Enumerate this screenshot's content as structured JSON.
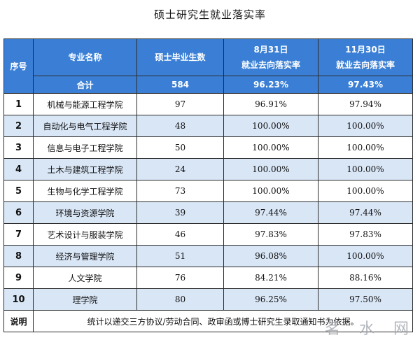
{
  "title": "硕士研究生就业落实率",
  "headers": {
    "index": "序号",
    "major": "专业名称",
    "graduates": "硕士毕业生数",
    "aug_line1": "8月31日",
    "aug_line2": "就业去向落实率",
    "nov_line1": "11月30日",
    "nov_line2": "就业去向落实率"
  },
  "total": {
    "label": "合计",
    "graduates": "584",
    "aug": "96.23%",
    "nov": "97.43%"
  },
  "rows": [
    {
      "index": "1",
      "name": "机械与能源工程学院",
      "graduates": "97",
      "aug": "96.91%",
      "nov": "97.94%"
    },
    {
      "index": "2",
      "name": "自动化与电气工程学院",
      "graduates": "48",
      "aug": "100.00%",
      "nov": "100.00%"
    },
    {
      "index": "3",
      "name": "信息与电子工程学院",
      "graduates": "50",
      "aug": "100.00%",
      "nov": "100.00%"
    },
    {
      "index": "4",
      "name": "土木与建筑工程学院",
      "graduates": "24",
      "aug": "100.00%",
      "nov": "100.00%"
    },
    {
      "index": "5",
      "name": "生物与化学工程学院",
      "graduates": "73",
      "aug": "100.00%",
      "nov": "100.00%"
    },
    {
      "index": "6",
      "name": "环境与资源学院",
      "graduates": "39",
      "aug": "97.44%",
      "nov": "97.44%"
    },
    {
      "index": "7",
      "name": "艺术设计与服装学院",
      "graduates": "46",
      "aug": "97.83%",
      "nov": "97.83%"
    },
    {
      "index": "8",
      "name": "经济与管理学院",
      "graduates": "51",
      "aug": "96.08%",
      "nov": "100.00%"
    },
    {
      "index": "9",
      "name": "人文学院",
      "graduates": "76",
      "aug": "84.21%",
      "nov": "88.16%"
    },
    {
      "index": "10",
      "name": "理学院",
      "graduates": "80",
      "aug": "96.25%",
      "nov": "97.50%"
    }
  ],
  "note": {
    "label": "说明",
    "text": "统计以递交三方协议/劳动合同、政审函或博士研究生录取通知书为依据。"
  },
  "watermark": "茗 水 网"
}
